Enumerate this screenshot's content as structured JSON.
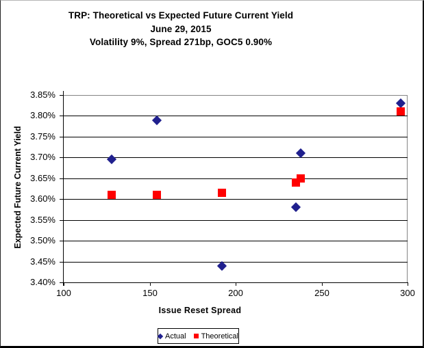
{
  "title": {
    "line1": "TRP: Theoretical vs Expected Future Current Yield",
    "line2": "June 29, 2015",
    "line3": "Volatility 9%, Spread 271bp, GOC5 0.90%"
  },
  "chart_data": {
    "type": "scatter",
    "title": "TRP: Theoretical vs Expected Future Current Yield",
    "subtitle1": "June 29, 2015",
    "subtitle2": "Volatility 9%, Spread 271bp, GOC5 0.90%",
    "xlabel": "Issue Reset Spread",
    "ylabel": "Expected Future Current Yield",
    "xlim": [
      100,
      300
    ],
    "ylim": [
      3.4,
      3.85
    ],
    "grid": "horizontal",
    "legend_position": "bottom",
    "x": [
      128,
      154,
      192,
      235,
      238,
      296
    ],
    "series": [
      {
        "name": "Actual",
        "marker": "diamond",
        "color": "#20208E",
        "values": [
          3.695,
          3.79,
          3.44,
          3.58,
          3.71,
          3.83
        ]
      },
      {
        "name": "Theoretical",
        "marker": "square",
        "color": "#FF0000",
        "values": [
          3.61,
          3.61,
          3.615,
          3.64,
          3.65,
          3.81
        ]
      }
    ],
    "xticks": [
      {
        "value": 100,
        "label": "100"
      },
      {
        "value": 150,
        "label": "150"
      },
      {
        "value": 200,
        "label": "200"
      },
      {
        "value": 250,
        "label": "250"
      },
      {
        "value": 300,
        "label": "300"
      }
    ],
    "yticks": [
      {
        "value": 3.85,
        "label": "3.85%"
      },
      {
        "value": 3.8,
        "label": "3.80%"
      },
      {
        "value": 3.75,
        "label": "3.75%"
      },
      {
        "value": 3.7,
        "label": "3.70%"
      },
      {
        "value": 3.65,
        "label": "3.65%"
      },
      {
        "value": 3.6,
        "label": "3.60%"
      },
      {
        "value": 3.55,
        "label": "3.55%"
      },
      {
        "value": 3.5,
        "label": "3.50%"
      },
      {
        "value": 3.45,
        "label": "3.45%"
      },
      {
        "value": 3.4,
        "label": "3.40%"
      }
    ]
  }
}
